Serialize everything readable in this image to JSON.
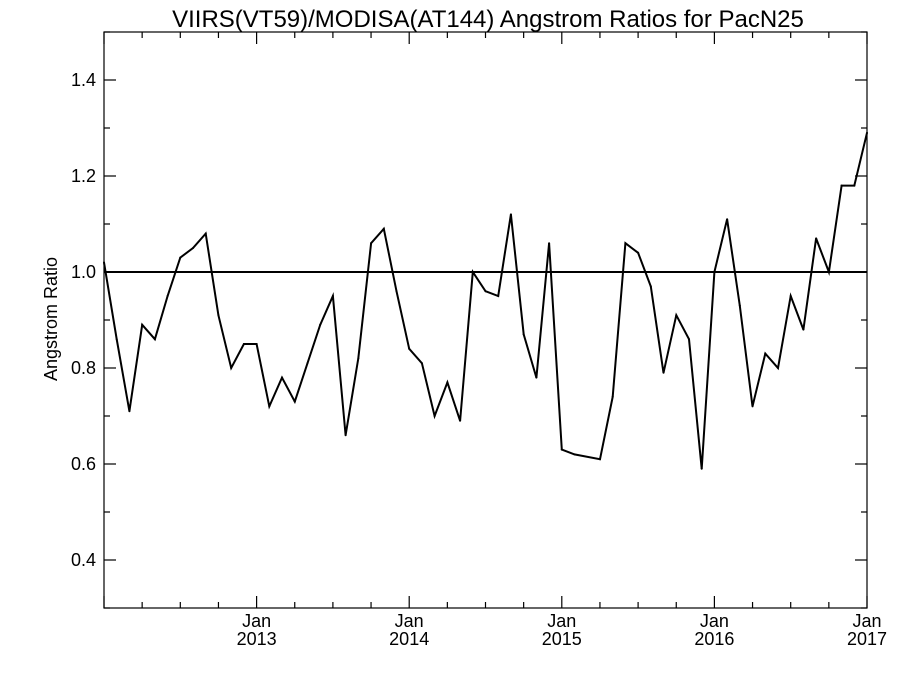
{
  "chart_data": {
    "type": "line",
    "title": "VIIRS(VT59)/MODISA(AT144)  Angstrom Ratios for PacN25",
    "xlabel": "",
    "ylabel": "Angstrom Ratio",
    "xlim": [
      "2012-01",
      "2017-01"
    ],
    "ylim": [
      0.3,
      1.5
    ],
    "y_major_ticks": [
      0.4,
      0.6,
      0.8,
      1.0,
      1.2,
      1.4
    ],
    "y_tick_labels": [
      "0.4",
      "0.6",
      "0.8",
      "1.0",
      "1.2",
      "1.4"
    ],
    "x_major_ticks": [
      {
        "date": "2013-01",
        "month": "Jan",
        "year": "2013"
      },
      {
        "date": "2014-01",
        "month": "Jan",
        "year": "2014"
      },
      {
        "date": "2015-01",
        "month": "Jan",
        "year": "2015"
      },
      {
        "date": "2016-01",
        "month": "Jan",
        "year": "2016"
      },
      {
        "date": "2017-01",
        "month": "Jan",
        "year": "2017"
      }
    ],
    "reference_line": {
      "y": 1.0
    },
    "grid": false,
    "series": [
      {
        "x": [
          "2012-01",
          "2012-02",
          "2012-03",
          "2012-04",
          "2012-05",
          "2012-06",
          "2012-07",
          "2012-08",
          "2012-09",
          "2012-10",
          "2012-11",
          "2012-12",
          "2013-01",
          "2013-02",
          "2013-03",
          "2013-04",
          "2013-05",
          "2013-06",
          "2013-07",
          "2013-08",
          "2013-09",
          "2013-10",
          "2013-11",
          "2013-12",
          "2014-01",
          "2014-02",
          "2014-03",
          "2014-04",
          "2014-05",
          "2014-06",
          "2014-07",
          "2014-08",
          "2014-09",
          "2014-10",
          "2014-11",
          "2014-12",
          "2015-01",
          "2015-02",
          "2015-04",
          "2015-05",
          "2015-06",
          "2015-07",
          "2015-08",
          "2015-09",
          "2015-10",
          "2015-11",
          "2015-12",
          "2016-01",
          "2016-02",
          "2016-03",
          "2016-04",
          "2016-05",
          "2016-06",
          "2016-07",
          "2016-08",
          "2016-09",
          "2016-10",
          "2016-11",
          "2016-12",
          "2017-01"
        ],
        "y": [
          1.02,
          0.86,
          0.71,
          0.89,
          0.86,
          0.95,
          1.03,
          1.05,
          1.08,
          0.91,
          0.8,
          0.85,
          0.85,
          0.72,
          0.78,
          0.73,
          0.81,
          0.89,
          0.95,
          0.66,
          0.82,
          1.06,
          1.09,
          0.96,
          0.84,
          0.81,
          0.7,
          0.77,
          0.69,
          1.0,
          0.96,
          0.95,
          1.12,
          0.87,
          0.78,
          1.06,
          0.63,
          0.62,
          0.61,
          0.74,
          1.06,
          1.04,
          0.97,
          0.79,
          0.91,
          0.86,
          0.59,
          1.0,
          1.11,
          0.93,
          0.72,
          0.83,
          0.8,
          0.95,
          0.88,
          1.07,
          1.0,
          1.18,
          1.18,
          1.29
        ]
      }
    ]
  }
}
